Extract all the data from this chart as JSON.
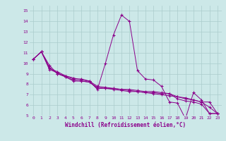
{
  "xlabel": "Windchill (Refroidissement éolien,°C)",
  "bg_color": "#cce8e8",
  "line_color": "#8b008b",
  "grid_color": "#aacccc",
  "xlim": [
    -0.5,
    23.5
  ],
  "ylim": [
    5,
    15.5
  ],
  "xticks": [
    0,
    1,
    2,
    3,
    4,
    5,
    6,
    7,
    8,
    9,
    10,
    11,
    12,
    13,
    14,
    15,
    16,
    17,
    18,
    19,
    20,
    21,
    22,
    23
  ],
  "yticks": [
    5,
    6,
    7,
    8,
    9,
    10,
    11,
    12,
    13,
    14,
    15
  ],
  "x_vals": [
    0,
    1,
    2,
    3,
    4,
    5,
    6,
    7,
    8,
    9,
    10,
    11,
    12,
    13,
    14,
    15,
    16,
    17,
    18,
    19,
    20,
    21,
    22,
    23
  ],
  "series": [
    [
      10.4,
      11.1,
      9.8,
      9.0,
      8.8,
      8.5,
      8.5,
      8.3,
      7.5,
      10.0,
      12.7,
      14.6,
      14.0,
      9.3,
      8.5,
      8.4,
      7.8,
      6.3,
      6.2,
      4.7,
      7.2,
      6.5,
      5.2,
      5.2
    ],
    [
      10.4,
      11.1,
      9.6,
      9.0,
      8.7,
      8.3,
      8.3,
      8.2,
      7.6,
      7.6,
      7.6,
      7.5,
      7.5,
      7.4,
      7.3,
      7.3,
      7.2,
      7.1,
      6.6,
      6.4,
      6.3,
      6.1,
      5.2,
      5.2
    ],
    [
      10.4,
      11.1,
      9.4,
      9.1,
      8.7,
      8.4,
      8.3,
      8.2,
      7.7,
      7.6,
      7.5,
      7.4,
      7.3,
      7.3,
      7.2,
      7.2,
      7.1,
      7.1,
      6.8,
      6.6,
      6.5,
      6.3,
      5.8,
      5.2
    ],
    [
      10.4,
      11.1,
      9.5,
      9.2,
      8.8,
      8.6,
      8.4,
      8.3,
      7.8,
      7.7,
      7.6,
      7.5,
      7.4,
      7.3,
      7.2,
      7.1,
      7.0,
      6.9,
      6.8,
      6.7,
      6.5,
      6.3,
      6.3,
      5.2
    ]
  ]
}
